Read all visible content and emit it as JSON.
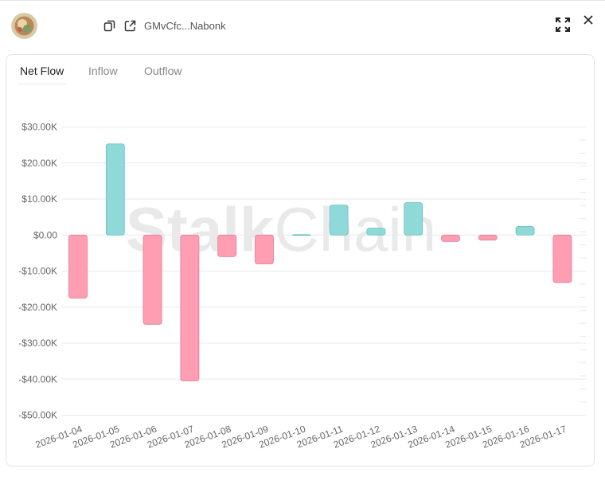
{
  "header": {
    "address": "GMvCfc...Nabonk",
    "avatar_icon": "avatar-image",
    "copy_icon": "copy-icon",
    "external_link_icon": "external-link-icon",
    "expand_icon": "expand-icon",
    "close_icon": "close-icon"
  },
  "tabs": [
    {
      "label": "Net Flow",
      "active": true
    },
    {
      "label": "Inflow",
      "active": false
    },
    {
      "label": "Outflow",
      "active": false
    }
  ],
  "watermark": {
    "part1": "Stalk",
    "part2": "Chain"
  },
  "colors": {
    "positive": "#8fd9d9",
    "positive_stroke": "#63c0c0",
    "negative": "#ff9db3",
    "negative_stroke": "#e27a92"
  },
  "chart_data": {
    "type": "bar",
    "categories": [
      "2026-01-04",
      "2026-01-05",
      "2026-01-06",
      "2026-01-07",
      "2026-01-08",
      "2026-01-09",
      "2026-01-10",
      "2026-01-11",
      "2026-01-12",
      "2026-01-13",
      "2026-01-14",
      "2026-01-15",
      "2026-01-16",
      "2026-01-17"
    ],
    "values": [
      -17.5,
      25.3,
      -24.8,
      -40.5,
      -6.0,
      -8.0,
      0.1,
      8.3,
      1.9,
      9.0,
      -1.8,
      -1.4,
      2.4,
      -13.2
    ],
    "yticks": [
      30,
      20,
      10,
      0,
      -10,
      -20,
      -30,
      -40,
      -50
    ],
    "ytick_labels": [
      "$30.00K",
      "$20.00K",
      "$10.00K",
      "$0.00",
      "-$10.00K",
      "-$20.00K",
      "-$30.00K",
      "-$40.00K",
      "-$50.00K"
    ],
    "ylim": [
      -50,
      30
    ],
    "unit": "thousands USD",
    "grid": true
  }
}
